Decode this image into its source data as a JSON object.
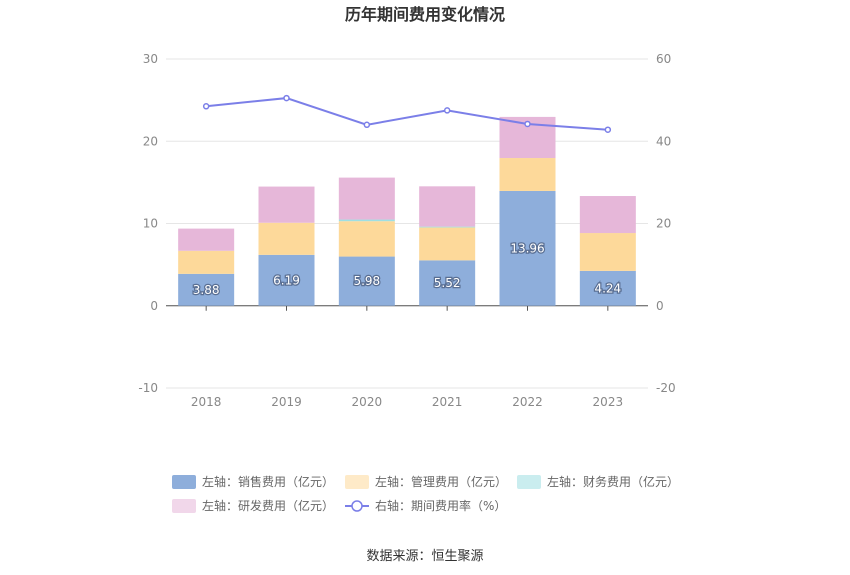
{
  "title": "历年期间费用变化情况",
  "source": "数据来源：恒生聚源",
  "colors": {
    "sales": "#8eaedb",
    "admin": "#fdd99a",
    "finance": "#9edfe2",
    "rnd": "#e6b7d9",
    "rate_line": "#7b7fe8"
  },
  "chart_data": {
    "type": "bar",
    "stacked": true,
    "categories": [
      "2018",
      "2019",
      "2020",
      "2021",
      "2022",
      "2023"
    ],
    "left_axis": {
      "ylim": [
        -10,
        30
      ],
      "ticks": [
        "-10",
        "0",
        "10",
        "20",
        "30"
      ]
    },
    "right_axis": {
      "ylim": [
        -20,
        60
      ],
      "ticks": [
        "-20",
        "0",
        "20",
        "40",
        "60"
      ]
    },
    "series": [
      {
        "name": "左轴：销售费用（亿元）",
        "key": "sales",
        "type": "bar",
        "axis": "left",
        "values": [
          3.88,
          6.19,
          5.98,
          5.52,
          13.96,
          4.24
        ],
        "labels": [
          "3.88",
          "6.19",
          "5.98",
          "5.52",
          "13.96",
          "4.24"
        ]
      },
      {
        "name": "左轴：管理费用（亿元）",
        "key": "admin",
        "type": "bar",
        "axis": "left",
        "values": [
          2.8,
          3.9,
          4.3,
          4.0,
          4.0,
          4.6
        ]
      },
      {
        "name": "左轴：财务费用（亿元）",
        "key": "finance",
        "type": "bar",
        "axis": "left",
        "values": [
          0.0,
          0.0,
          0.2,
          0.1,
          0.0,
          0.0
        ]
      },
      {
        "name": "左轴：研发费用（亿元）",
        "key": "rnd",
        "type": "bar",
        "axis": "left",
        "values": [
          2.7,
          4.4,
          5.1,
          4.9,
          5.0,
          4.5
        ]
      },
      {
        "name": "右轴：期间费用率（%）",
        "key": "rate_line",
        "type": "line",
        "axis": "right",
        "values": [
          48.5,
          50.5,
          44.0,
          47.5,
          44.2,
          42.8
        ]
      }
    ],
    "grid": true,
    "legend_position": "bottom"
  }
}
